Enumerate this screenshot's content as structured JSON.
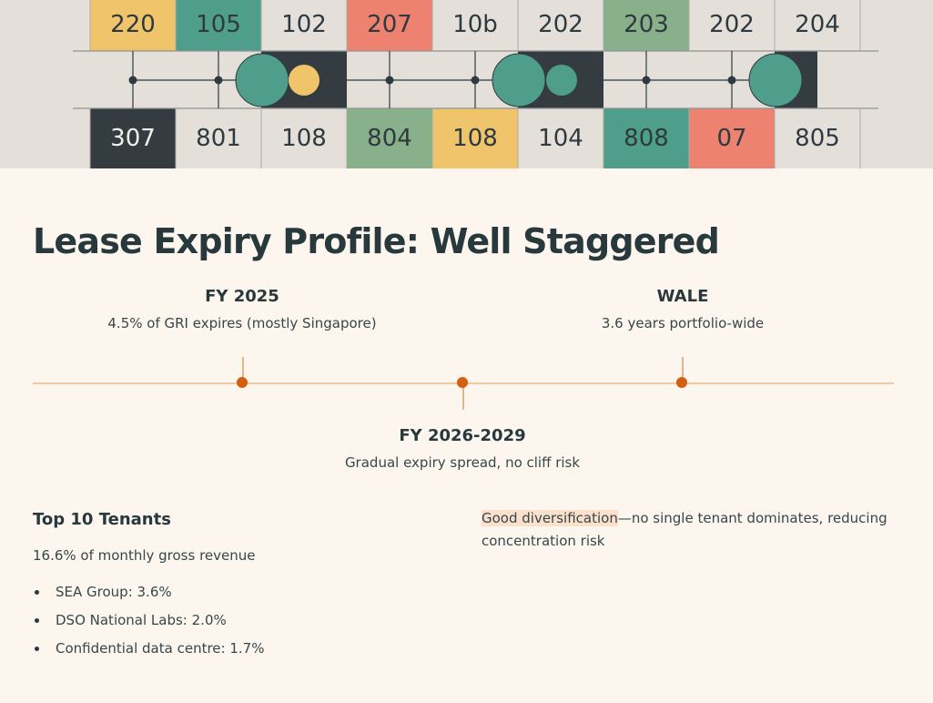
{
  "hero": {
    "top_labels": [
      "220",
      "105",
      "102",
      "207",
      "10b",
      "202",
      "203",
      "202",
      "204"
    ],
    "bottom_labels": [
      "307",
      "801",
      "108",
      "804",
      "108",
      "104",
      "808",
      "07",
      "805"
    ],
    "colors": {
      "yellow": "#efc46b",
      "teal": "#4f9e8b",
      "coral": "#ee8271",
      "sage": "#88b08b",
      "dark": "#343c42",
      "light": "#e4e0d9",
      "ink": "#2e3a3f"
    }
  },
  "page": {
    "title": "Lease Expiry Profile: Well Staggered"
  },
  "timeline": {
    "accent": "#d35f10",
    "events": [
      {
        "title": "FY 2025",
        "desc": "4.5% of GRI expires (mostly Singapore)"
      },
      {
        "title": "FY 2026-2029",
        "desc": "Gradual expiry spread, no cliff risk"
      },
      {
        "title": "WALE",
        "desc": "3.6 years portfolio-wide"
      }
    ]
  },
  "tenants": {
    "heading": "Top 10 Tenants",
    "subtitle": "16.6% of monthly gross revenue",
    "items": [
      "SEA Group: 3.6%",
      "DSO National Labs: 2.0%",
      "Confidential data centre: 1.7%"
    ]
  },
  "note": {
    "highlight": "Good diversification",
    "rest": "—no single tenant dominates, reducing concentration risk"
  }
}
